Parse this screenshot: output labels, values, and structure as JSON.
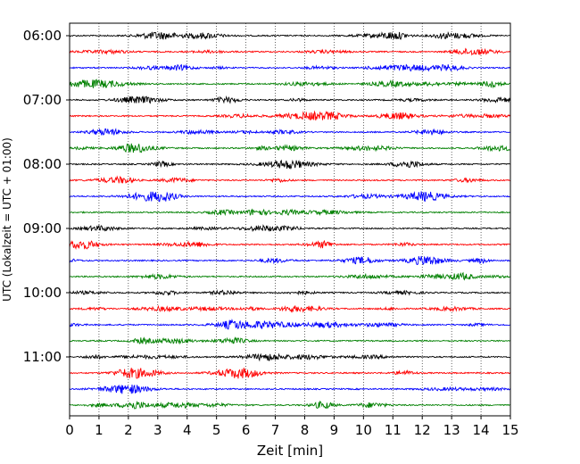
{
  "chart_data": {
    "type": "line",
    "title": "",
    "xlabel": "Zeit  [min]",
    "ylabel": "UTC (Lokalzeit = UTC + 01:00)",
    "xlim": [
      0,
      15
    ],
    "x_ticks": [
      "0",
      "1",
      "2",
      "3",
      "4",
      "5",
      "6",
      "7",
      "8",
      "9",
      "10",
      "11",
      "12",
      "13",
      "14",
      "15"
    ],
    "y_ticks": [
      "06:00",
      "07:00",
      "08:00",
      "09:00",
      "10:00",
      "11:00"
    ],
    "grid": "vertical dotted at each minute",
    "trace_interval_min": 15,
    "first_trace": "06:00",
    "trace_count": 24,
    "color_cycle": [
      "#000000",
      "#ff0000",
      "#0000ff",
      "#008000"
    ]
  }
}
